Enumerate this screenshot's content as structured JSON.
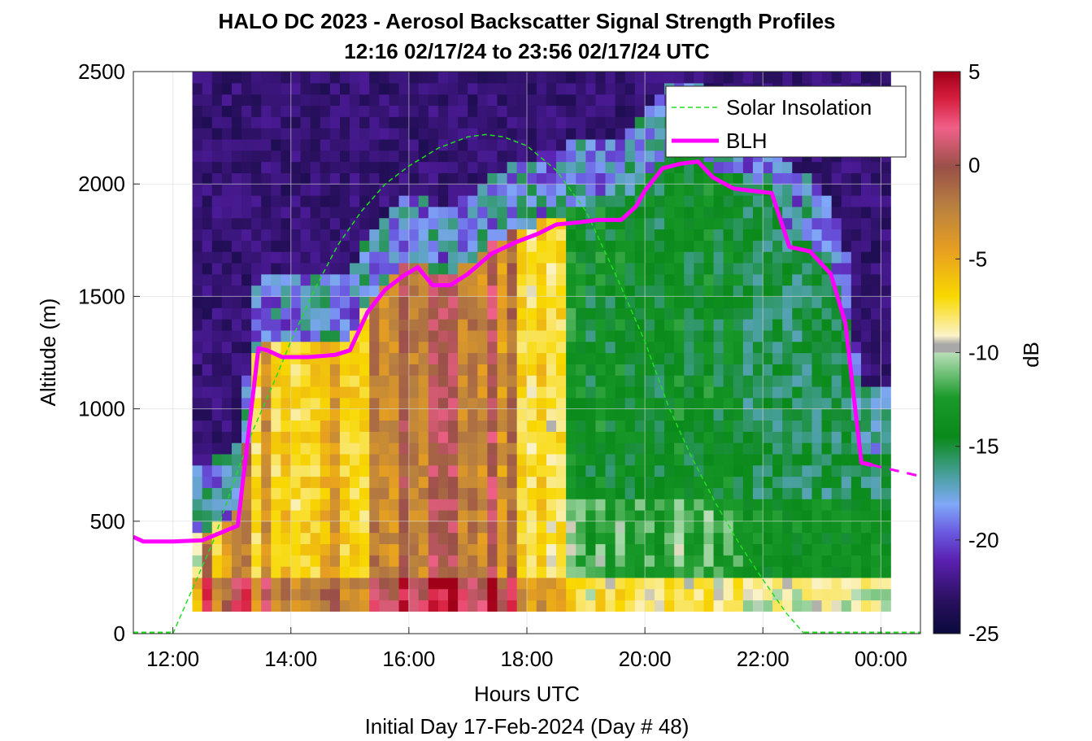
{
  "chart_data": {
    "type": "heatmap",
    "title": "HALO DC 2023 - Aerosol Backscatter Signal Strength Profiles",
    "subtitle": "12:16 02/17/24 to 23:56 02/17/24  UTC",
    "xlabel": "Hours UTC",
    "xlabel2": "Initial Day 17-Feb-2024 (Day # 48)",
    "ylabel": "Altitude (m)",
    "colorbar_label": "dB",
    "xlim": [
      11.33,
      24.67
    ],
    "ylim": [
      0,
      2500
    ],
    "clim": [
      -25,
      5
    ],
    "grid": true,
    "legend_position": "top-right",
    "x_ticks": [
      12,
      14,
      16,
      18,
      20,
      22,
      24
    ],
    "x_tick_labels": [
      "12:00",
      "14:00",
      "16:00",
      "18:00",
      "20:00",
      "22:00",
      "00:00"
    ],
    "y_ticks": [
      0,
      500,
      1000,
      1500,
      2000,
      2500
    ],
    "y_tick_labels": [
      "0",
      "500",
      "1000",
      "1500",
      "2000",
      "2500"
    ],
    "colorbar_ticks": [
      5,
      0,
      -5,
      -10,
      -15,
      -20,
      -25
    ],
    "colorbar_tick_labels": [
      "5",
      "0",
      "-5",
      "-10",
      "-15",
      "-20",
      "-25"
    ],
    "series": [
      {
        "name": "Solar Insolation",
        "style": "dashed",
        "color": "#22dd22",
        "x": [
          12.0,
          12.3,
          12.7,
          13.0,
          13.3,
          13.7,
          14.0,
          14.4,
          14.8,
          15.2,
          15.6,
          16.0,
          16.5,
          17.0,
          17.3,
          17.6,
          18.0,
          18.5,
          19.0,
          19.5,
          20.0,
          20.4,
          20.8,
          21.2,
          21.6,
          22.0,
          22.4,
          22.7
        ],
        "y": [
          0,
          180,
          420,
          650,
          870,
          1110,
          1300,
          1530,
          1730,
          1880,
          2000,
          2080,
          2160,
          2210,
          2220,
          2210,
          2170,
          2060,
          1880,
          1600,
          1300,
          1010,
          780,
          580,
          400,
          240,
          90,
          0
        ]
      },
      {
        "name": "BLH",
        "color": "#ff00ff",
        "x": [
          11.33,
          11.5,
          12.0,
          12.5,
          13.1,
          13.45,
          13.6,
          13.85,
          14.3,
          14.75,
          15.0,
          15.3,
          15.6,
          15.9,
          16.15,
          16.4,
          16.7,
          17.0,
          17.4,
          17.8,
          18.2,
          18.5,
          18.9,
          19.2,
          19.6,
          19.85,
          20.0,
          20.3,
          20.6,
          20.9,
          21.15,
          21.5,
          21.8,
          22.15,
          22.45,
          22.8,
          23.15,
          23.4,
          23.67,
          23.85
        ],
        "y": [
          430,
          410,
          410,
          415,
          480,
          1270,
          1260,
          1230,
          1230,
          1240,
          1260,
          1430,
          1530,
          1590,
          1630,
          1550,
          1550,
          1600,
          1690,
          1740,
          1780,
          1820,
          1830,
          1840,
          1840,
          1900,
          1970,
          2070,
          2090,
          2100,
          2030,
          1980,
          1970,
          1960,
          1720,
          1700,
          1600,
          1380,
          760,
          750
        ]
      },
      {
        "name": "",
        "style": "dashed",
        "color": "#ff00ff",
        "x": [
          23.85,
          24.67
        ],
        "y": [
          750,
          700
        ]
      }
    ],
    "heatmap_x_range": [
      12.33,
      24.0
    ],
    "heatmap_y_range": [
      100,
      2500
    ]
  }
}
